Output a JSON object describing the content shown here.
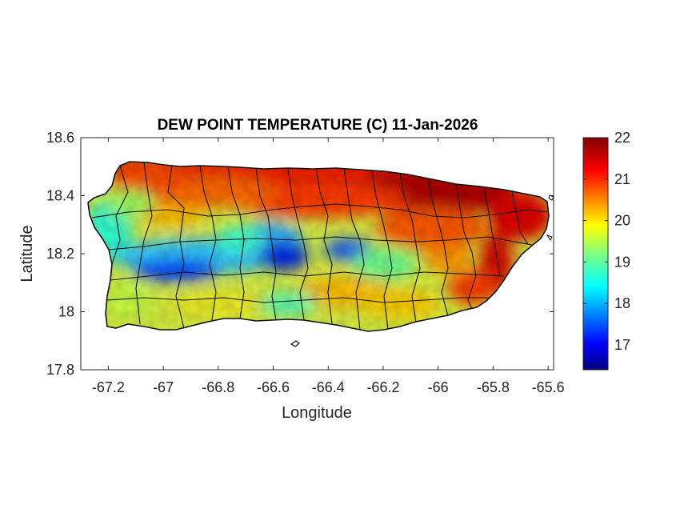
{
  "title": "DEW POINT TEMPERATURE (C) 11-Jan-2026",
  "xlabel": "Longitude",
  "ylabel": "Latitude",
  "x_ticks": [
    "-67.2",
    "-67",
    "-66.8",
    "-66.6",
    "-66.4",
    "-66.2",
    "-66",
    "-65.8",
    "-65.6"
  ],
  "y_ticks": [
    "18.6",
    "18.4",
    "18.2",
    "18",
    "17.8"
  ],
  "colorbar_ticks": [
    "22",
    "21",
    "20",
    "19",
    "18",
    "17"
  ],
  "map": {
    "region": "Puerto Rico",
    "variable": "dew point temperature",
    "units": "C",
    "date": "11-Jan-2026",
    "colormap": "jet",
    "xlim": [
      -67.3,
      -65.58
    ],
    "ylim": [
      17.8,
      18.6
    ],
    "clim": [
      16.4,
      22.0
    ],
    "x_tick_values": [
      -67.2,
      -67.0,
      -66.8,
      -66.6,
      -66.4,
      -66.2,
      -66.0,
      -65.8,
      -65.6
    ],
    "y_tick_values": [
      18.6,
      18.4,
      18.2,
      18.0,
      17.8
    ],
    "colorbar_tick_values": [
      22,
      21,
      20,
      19,
      18,
      17
    ],
    "municipal_boundaries": true,
    "colorbar_position": "right"
  }
}
